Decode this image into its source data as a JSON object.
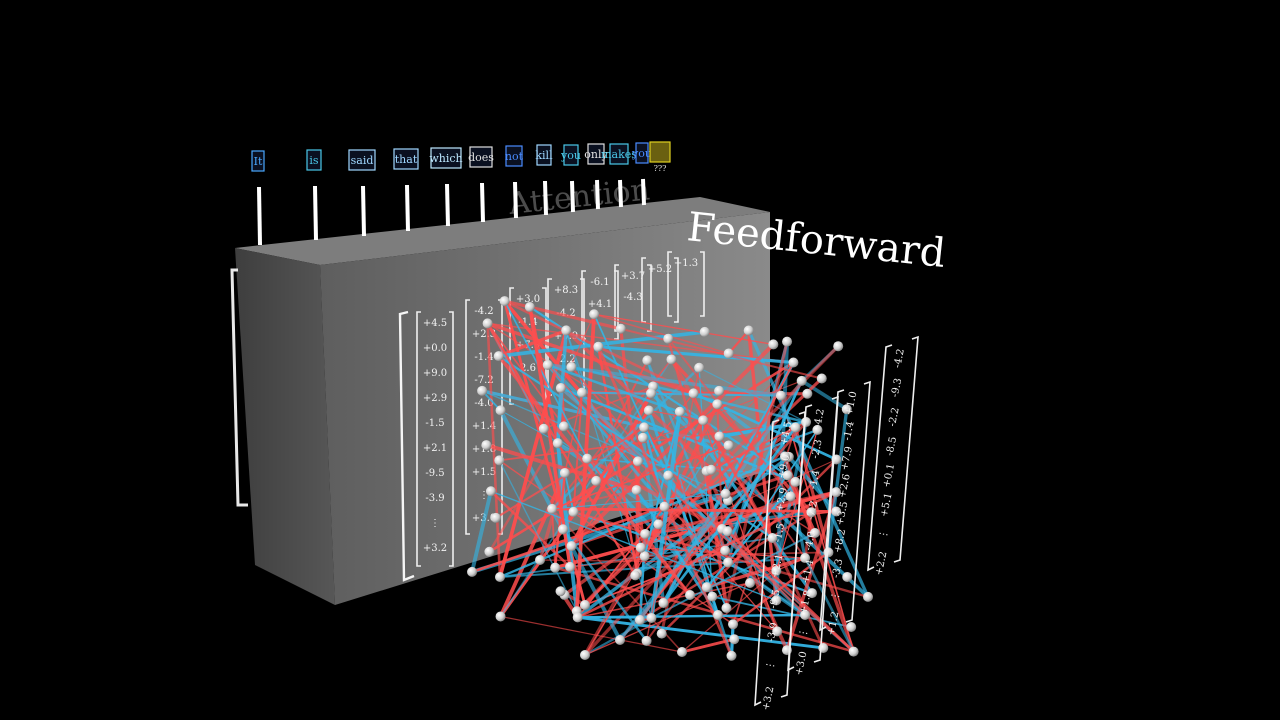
{
  "tokens": [
    {
      "text": "It",
      "color": "#4aa8ff"
    },
    {
      "text": "is",
      "color": "#4ac8e8"
    },
    {
      "text": "said",
      "color": "#9fd7ff"
    },
    {
      "text": "that",
      "color": "#9fd7ff"
    },
    {
      "text": "which",
      "color": "#bde8ff"
    },
    {
      "text": "does",
      "color": "#e0e0e0"
    },
    {
      "text": "not",
      "color": "#4a8cff"
    },
    {
      "text": "kill",
      "color": "#9fd7ff"
    },
    {
      "text": "you",
      "color": "#4ac8e8"
    },
    {
      "text": "only",
      "color": "#e0e0e0"
    },
    {
      "text": "makes",
      "color": "#4ac8e8"
    },
    {
      "text": "you",
      "color": "#4a8cff"
    },
    {
      "text": "",
      "color": "#e0d020"
    }
  ],
  "unknown_marker": "???",
  "attention_label": "Attention",
  "feedforward_label": "Feedforward",
  "input_vectors": [
    [
      "+4.5",
      "+0.0",
      "+9.0",
      "+2.9",
      "-1.5",
      "+2.1",
      "-9.5",
      "-3.9",
      "⋮",
      "+3.2"
    ],
    [
      "-4.2",
      "+2.3",
      "-1.4",
      "-7.2",
      "-4.0",
      "+1.4",
      "+1.8",
      "+1.5",
      "⋮",
      "+3.0"
    ],
    [
      "+3.0",
      "-1.4",
      "+7.9",
      "2.6",
      "",
      "",
      "",
      "",
      "",
      ""
    ],
    [
      "+8.3",
      "-4.2",
      "+9.9",
      "-2.2",
      "",
      "",
      "",
      "",
      "",
      ""
    ],
    [
      "-6.1",
      "+4.1",
      "",
      "",
      "",
      "",
      "",
      "",
      "",
      ""
    ],
    [
      "+3.7",
      "-4.3",
      "",
      "",
      "",
      "",
      "",
      "",
      "",
      ""
    ],
    [
      "+5.2",
      "",
      "",
      "",
      "",
      "",
      "",
      "",
      "",
      ""
    ],
    [
      "+1.3",
      "",
      "",
      "",
      "",
      "",
      "",
      "",
      "",
      ""
    ]
  ],
  "output_vectors": [
    [
      "+4.5",
      "+9.0",
      "+2.9",
      "-1.5",
      "+2.1",
      "-9.5",
      "-3.9",
      "⋮",
      "+3.2"
    ],
    [
      "-4.2",
      "-2.3",
      "-1.4",
      "-7.2",
      "-4.0",
      "+1.4",
      "+1.8",
      "⋮",
      "+3.0"
    ],
    [
      "+1.0",
      "-1.4",
      "+7.9",
      "+2.6",
      "+3.5",
      "+8.2",
      "-3.3",
      "⋮",
      "+1.2"
    ],
    [
      "-4.2",
      "-9.3",
      "-2.2",
      "-8.5",
      "+0.1",
      "+5.1",
      "⋮",
      "+2.2"
    ]
  ],
  "colors": {
    "positive_edge": "#ff4d4d",
    "negative_edge": "#33b5e5",
    "node": "#e6e6e6",
    "block": "#6e6e6e"
  }
}
